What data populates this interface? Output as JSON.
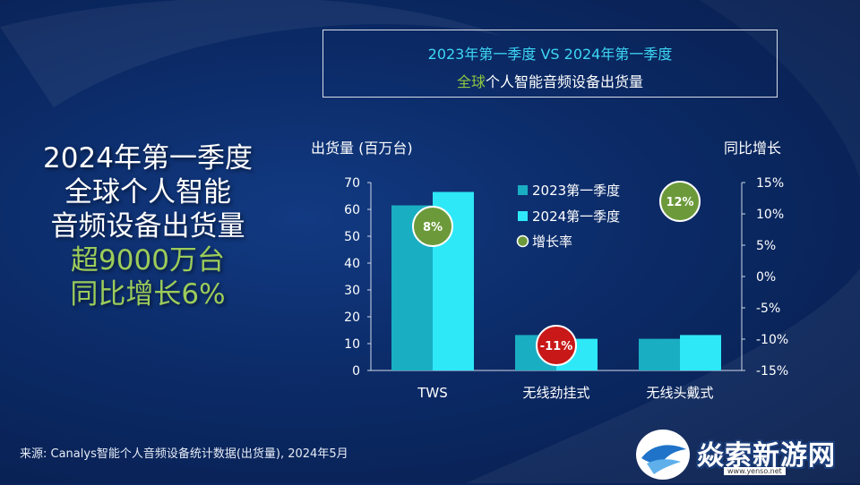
{
  "left_block": {
    "line1": "2024年第一季度",
    "line2": "全球个人智能",
    "line3": "音频设备出货量",
    "line4": "超9000万台",
    "line5": "同比增长6%"
  },
  "title_box": {
    "line1": "2023年第一季度 VS 2024年第一季度",
    "line2_green": "全球",
    "line2_white": "个人智能音频设备出货量"
  },
  "footer": "来源: Canalys智能个人音频设备统计数据(出货量), 2024年5月",
  "logo": {
    "text": "焱索新游网",
    "url": "www.yenso.net"
  },
  "colors": {
    "series_2023": "#1aaec3",
    "series_2024": "#2ee8f8",
    "growth_positive": "#6c9a3a",
    "growth_negative": "#c81818"
  },
  "chart_data": {
    "type": "bar",
    "categories": [
      "TWS",
      "无线劲挂式",
      "无线头戴式"
    ],
    "series": [
      {
        "name": "2023第一季度",
        "values": [
          61.5,
          13.2,
          11.8
        ]
      },
      {
        "name": "2024第一季度",
        "values": [
          66.5,
          11.8,
          13.2
        ]
      }
    ],
    "growth": {
      "name": "增长率",
      "values": [
        8,
        -11,
        12
      ],
      "labels": [
        "8%",
        "-11%",
        "12%"
      ]
    },
    "ylabel": "出货量 (百万台)",
    "y2label": "同比增长",
    "ylim": [
      0,
      70
    ],
    "yticks": [
      "0",
      "10",
      "20",
      "30",
      "40",
      "50",
      "60",
      "70"
    ],
    "y2lim": [
      -15,
      15
    ],
    "y2ticks": [
      "-15%",
      "-10%",
      "-5%",
      "0%",
      "5%",
      "10%",
      "15%"
    ],
    "legend_position": "top-center",
    "grid": false
  }
}
